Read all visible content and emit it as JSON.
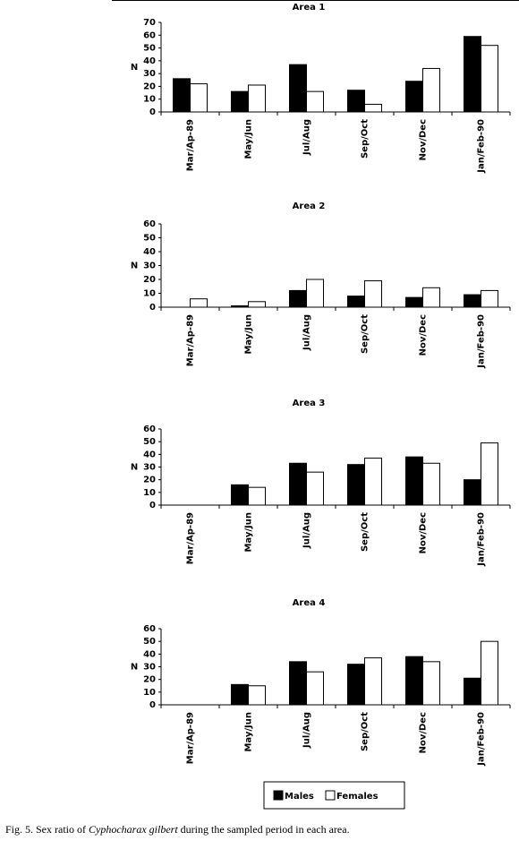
{
  "chart_data": [
    {
      "type": "bar",
      "title": "Area 1",
      "y_label": "N",
      "categories": [
        "Mar/Ap-89",
        "May/Jun",
        "Jul/Aug",
        "Sep/Oct",
        "Nov/Dec",
        "Jan/Feb-90"
      ],
      "series": [
        {
          "name": "Males",
          "color": "#000000",
          "values": [
            26,
            16,
            37,
            17,
            24,
            59
          ]
        },
        {
          "name": "Females",
          "color": "#ffffff",
          "values": [
            22,
            21,
            16,
            6,
            34,
            52
          ]
        }
      ],
      "ylim": [
        0,
        70
      ],
      "yticks": [
        0,
        10,
        20,
        30,
        40,
        50,
        60,
        70
      ]
    },
    {
      "type": "bar",
      "title": "Area 2",
      "y_label": "N",
      "categories": [
        "Mar/Ap-89",
        "May/Jun",
        "Jul/Aug",
        "Sep/Oct",
        "Nov/Dec",
        "Jan/Feb-90"
      ],
      "series": [
        {
          "name": "Males",
          "color": "#000000",
          "values": [
            0,
            1,
            12,
            8,
            7,
            9
          ]
        },
        {
          "name": "Females",
          "color": "#ffffff",
          "values": [
            6,
            4,
            20,
            19,
            14,
            12
          ]
        }
      ],
      "ylim": [
        0,
        60
      ],
      "yticks": [
        0,
        10,
        20,
        30,
        40,
        50,
        60
      ]
    },
    {
      "type": "bar",
      "title": "Area 3",
      "y_label": "N",
      "categories": [
        "Mar/Ap-89",
        "May/Jun",
        "Jul/Aug",
        "Sep/Oct",
        "Nov/Dec",
        "Jan/Feb-90"
      ],
      "series": [
        {
          "name": "Males",
          "color": "#000000",
          "values": [
            0,
            16,
            33,
            32,
            38,
            20
          ]
        },
        {
          "name": "Females",
          "color": "#ffffff",
          "values": [
            0,
            14,
            26,
            37,
            33,
            49
          ]
        }
      ],
      "ylim": [
        0,
        60
      ],
      "yticks": [
        0,
        10,
        20,
        30,
        40,
        50,
        60
      ]
    },
    {
      "type": "bar",
      "title": "Area 4",
      "y_label": "N",
      "categories": [
        "Mar/Ap-89",
        "May/Jun",
        "Jul/Aug",
        "Sep/Oct",
        "Nov/Dec",
        "Jan/Feb-90"
      ],
      "series": [
        {
          "name": "Males",
          "color": "#000000",
          "values": [
            0,
            16,
            34,
            32,
            38,
            21
          ]
        },
        {
          "name": "Females",
          "color": "#ffffff",
          "values": [
            0,
            15,
            26,
            37,
            34,
            50
          ]
        }
      ],
      "ylim": [
        0,
        60
      ],
      "yticks": [
        0,
        10,
        20,
        30,
        40,
        50,
        60
      ]
    }
  ],
  "caption": {
    "prefix": "Fig. 5. Sex ratio of ",
    "species": "Cyphocharax gilbert",
    "suffix": " during the sampled period in each area."
  }
}
